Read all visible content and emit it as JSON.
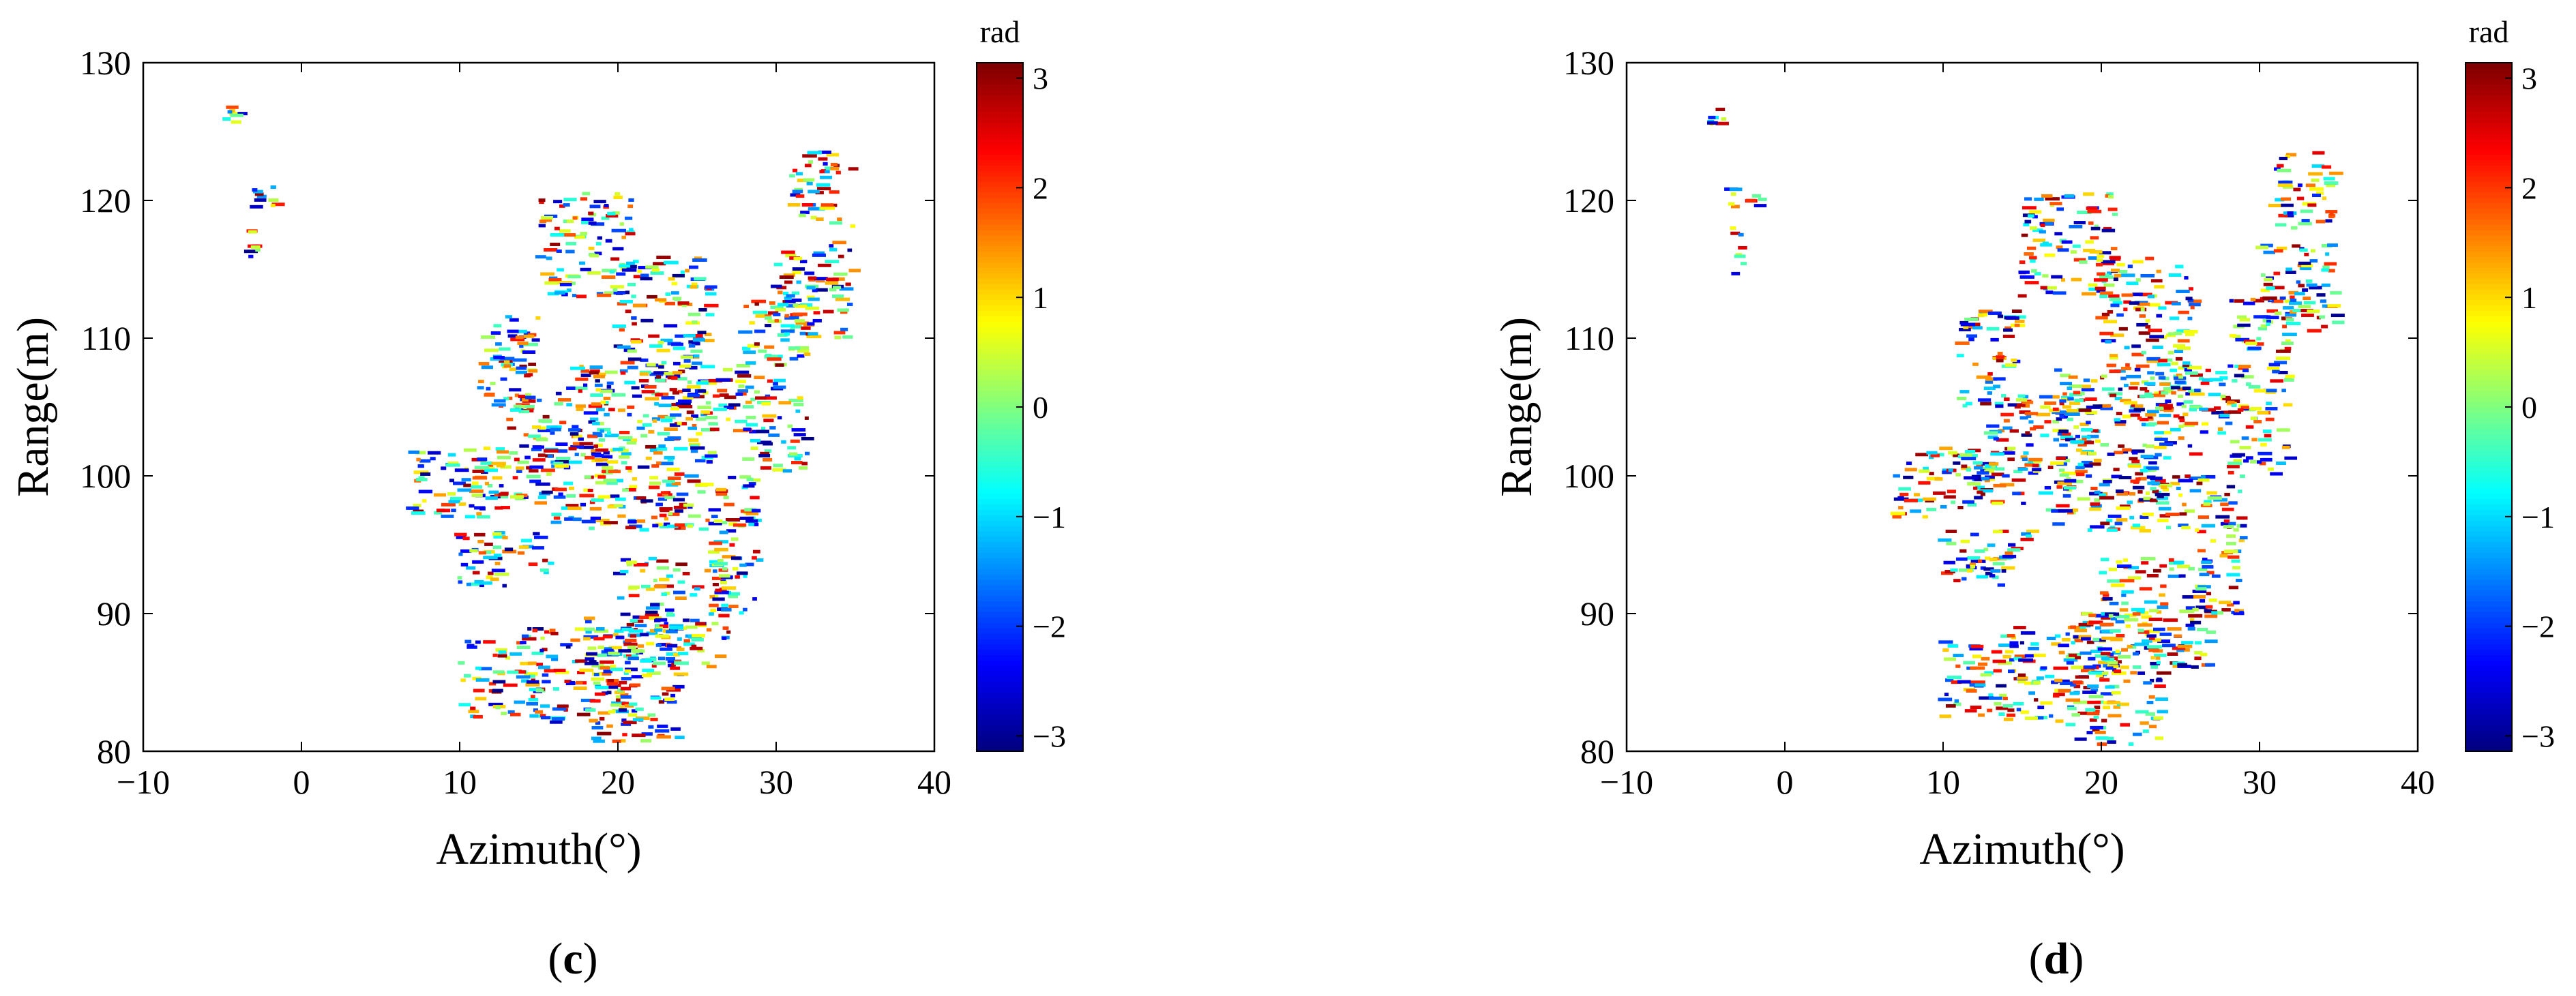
{
  "chart_data": [
    {
      "type": "scatter",
      "panel_label": "c",
      "xlabel": "Azimuth(°)",
      "ylabel": "Range(m)",
      "xlim": [
        -10,
        40
      ],
      "ylim": [
        80,
        130
      ],
      "xticks": [
        -10,
        0,
        10,
        20,
        30,
        40
      ],
      "yticks": [
        80,
        90,
        100,
        110,
        120,
        130
      ],
      "xtick_labels": [
        "−10",
        "0",
        "10",
        "20",
        "30",
        "40"
      ],
      "ytick_labels": [
        "80",
        "90",
        "100",
        "110",
        "120",
        "130"
      ],
      "colorbar": {
        "label": "rad",
        "range": [
          -3.14,
          3.14
        ],
        "ticks": [
          -3,
          -2,
          -1,
          0,
          1,
          2,
          3
        ],
        "tick_labels": [
          "−3",
          "−2",
          "−1",
          "0",
          "1",
          "2",
          "3"
        ],
        "colormap": "jet"
      },
      "grid": false,
      "seed": 11
    },
    {
      "type": "scatter",
      "panel_label": "d",
      "xlabel": "Azimuth(°)",
      "ylabel": "Range(m)",
      "xlim": [
        -10,
        40
      ],
      "ylim": [
        80,
        130
      ],
      "xticks": [
        -10,
        0,
        10,
        20,
        30,
        40
      ],
      "yticks": [
        80,
        90,
        100,
        110,
        120,
        130
      ],
      "xtick_labels": [
        "−10",
        "0",
        "10",
        "20",
        "30",
        "40"
      ],
      "ytick_labels": [
        "80",
        "90",
        "100",
        "110",
        "120",
        "130"
      ],
      "colorbar": {
        "label": "rad",
        "range": [
          -3.14,
          3.14
        ],
        "ticks": [
          -3,
          -2,
          -1,
          0,
          1,
          2,
          3
        ],
        "tick_labels": [
          "−3",
          "−2",
          "−1",
          "0",
          "1",
          "2",
          "3"
        ],
        "colormap": "jet"
      },
      "grid": false,
      "seed": 29
    }
  ],
  "point_clusters": [
    {
      "x": [
        -5,
        -3.5
      ],
      "y": [
        125.5,
        127
      ]
    },
    {
      "x": [
        -4,
        -1
      ],
      "y": [
        119.5,
        121
      ]
    },
    {
      "x": [
        -3.5,
        -2.5
      ],
      "y": [
        114.5,
        118
      ]
    },
    {
      "x": [
        7,
        13
      ],
      "y": [
        97,
        102
      ]
    },
    {
      "x": [
        10,
        16
      ],
      "y": [
        92,
        96
      ]
    },
    {
      "x": [
        11,
        16
      ],
      "y": [
        98,
        102
      ]
    },
    {
      "x": [
        10,
        15
      ],
      "y": [
        82.5,
        88
      ]
    },
    {
      "x": [
        14,
        21
      ],
      "y": [
        82,
        89
      ]
    },
    {
      "x": [
        18,
        24
      ],
      "y": [
        80.5,
        90
      ]
    },
    {
      "x": [
        20,
        27
      ],
      "y": [
        86,
        94
      ]
    },
    {
      "x": [
        13,
        20
      ],
      "y": [
        100,
        106
      ]
    },
    {
      "x": [
        16,
        24
      ],
      "y": [
        96,
        101
      ]
    },
    {
      "x": [
        17,
        26
      ],
      "y": [
        101,
        108
      ]
    },
    {
      "x": [
        22,
        28
      ],
      "y": [
        103,
        108
      ]
    },
    {
      "x": [
        20,
        26
      ],
      "y": [
        108,
        116
      ]
    },
    {
      "x": [
        22,
        29
      ],
      "y": [
        96,
        100
      ]
    },
    {
      "x": [
        28,
        32
      ],
      "y": [
        100,
        113
      ]
    },
    {
      "x": [
        30,
        35
      ],
      "y": [
        110,
        117
      ]
    },
    {
      "x": [
        31,
        35
      ],
      "y": [
        118,
        123.5
      ]
    },
    {
      "x": [
        15,
        21
      ],
      "y": [
        113,
        120.5
      ]
    },
    {
      "x": [
        11,
        15
      ],
      "y": [
        105,
        112
      ]
    },
    {
      "x": [
        26,
        29
      ],
      "y": [
        90,
        97
      ]
    }
  ]
}
